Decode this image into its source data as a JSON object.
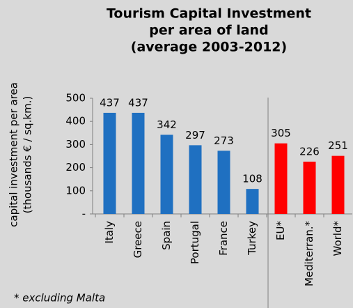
{
  "chart_data": {
    "type": "bar",
    "title": [
      "Tourism Capital Investment",
      "per area of land",
      "(average 2003-2012)"
    ],
    "y_label": [
      "capital investment per area",
      "(thousands € / sq.km.)"
    ],
    "categories": [
      "Italy",
      "Greece",
      "Spain",
      "Portugal",
      "France",
      "Turkey",
      "EU*",
      "Mediterran.*",
      "World*"
    ],
    "values": [
      437,
      437,
      342,
      297,
      273,
      108,
      305,
      226,
      251
    ],
    "colors": [
      "#1f70c1",
      "#1f70c1",
      "#1f70c1",
      "#1f70c1",
      "#1f70c1",
      "#1f70c1",
      "#ff0000",
      "#ff0000",
      "#ff0000"
    ],
    "ylim": [
      0,
      500
    ],
    "yticks": [
      {
        "value": 0,
        "label": "-"
      },
      100,
      200,
      300,
      400,
      500
    ],
    "footnote": "* excluding Malta"
  }
}
